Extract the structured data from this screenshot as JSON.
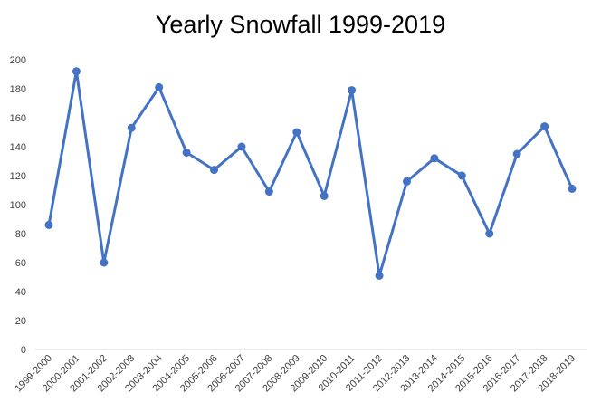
{
  "chart_data": {
    "type": "line",
    "title": "Yearly Snowfall 1999-2019",
    "xlabel": "",
    "ylabel": "",
    "categories": [
      "1999-2000",
      "2000-2001",
      "2001-2002",
      "2002-2003",
      "2003-2004",
      "2004-2005",
      "2005-2006",
      "2006-2007",
      "2007-2008",
      "2008-2009",
      "2009-2010",
      "2010-2011",
      "2011-2012",
      "2012-2013",
      "2013-2014",
      "2014-2015",
      "2015-2016",
      "2016-2017",
      "2017-2018",
      "2018-2019"
    ],
    "series": [
      {
        "values": [
          86,
          192,
          60,
          153,
          181,
          136,
          124,
          140,
          109,
          150,
          106,
          179,
          51,
          116,
          132,
          120,
          80,
          135,
          154,
          111
        ]
      }
    ],
    "ylim": [
      0,
      200
    ],
    "yticks": [
      0,
      20,
      40,
      60,
      80,
      100,
      120,
      140,
      160,
      180,
      200
    ],
    "grid": false,
    "legend": "none",
    "colors": {
      "line": "#4472C4",
      "axis": "#D9D9D9",
      "tick_text": "#404040"
    }
  }
}
